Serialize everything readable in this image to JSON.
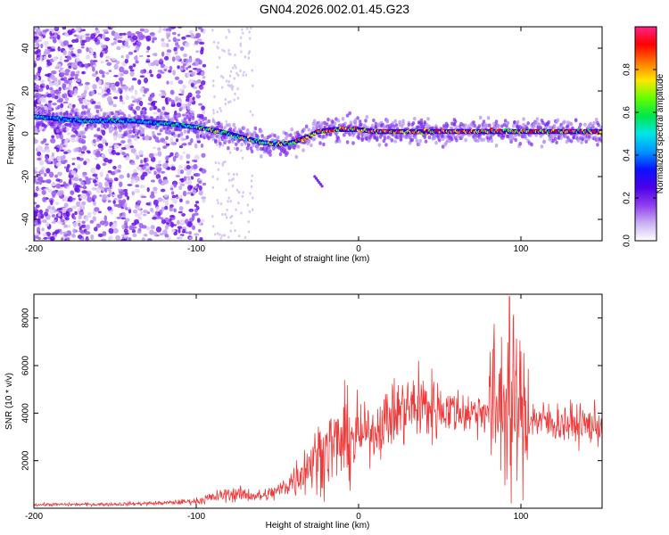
{
  "title": "GN04.2026.002.01.45.G23",
  "chart_data": [
    {
      "type": "heatmap",
      "title": "GN04.2026.002.01.45.G23",
      "xlabel": "Height of straight line (km)",
      "ylabel": "Frequency (Hz)",
      "xlim": [
        -200,
        150
      ],
      "ylim": [
        -50,
        50
      ],
      "xticks": [
        -200,
        -100,
        0,
        100
      ],
      "yticks": [
        -40,
        -20,
        0,
        20,
        40
      ],
      "colorbar": {
        "label": "Normalized spectral amplitude",
        "range": [
          0,
          1
        ],
        "ticks": [
          "0.0",
          "0.2",
          "0.4",
          "0.6",
          "0.8"
        ],
        "colors": [
          "#ffffff",
          "#c9b0f3",
          "#8f3cf0",
          "#4b00e8",
          "#0a12ff",
          "#0096ff",
          "#00e6e6",
          "#00e64b",
          "#64ff00",
          "#ffe600",
          "#ff7800",
          "#ff0000",
          "#ff2288"
        ]
      },
      "ridge": {
        "x": [
          -200,
          -170,
          -140,
          -120,
          -100,
          -85,
          -70,
          -60,
          -50,
          -40,
          -30,
          -25,
          -15,
          0,
          10,
          30,
          60,
          80,
          100,
          120,
          150
        ],
        "freq": [
          8,
          6,
          6,
          5,
          3,
          1,
          -2,
          -4,
          -5,
          -4,
          -1,
          1,
          2,
          2,
          1,
          1,
          1,
          1,
          1,
          1,
          1
        ]
      }
    },
    {
      "type": "line",
      "xlabel": "Height of straight line (km)",
      "ylabel": "SNR (10 * v/v)",
      "xlim": [
        -200,
        150
      ],
      "ylim": [
        0,
        9000
      ],
      "xticks": [
        -200,
        -100,
        0,
        100
      ],
      "yticks": [
        2000,
        4000,
        6000,
        8000
      ],
      "color": "#ee3a3a",
      "trend": {
        "x": [
          -200,
          -150,
          -120,
          -100,
          -90,
          -80,
          -70,
          -60,
          -50,
          -40,
          -30,
          -20,
          -10,
          0,
          10,
          20,
          30,
          40,
          50,
          60,
          70,
          80,
          90,
          95,
          100,
          110,
          120,
          130,
          140,
          150
        ],
        "snr": [
          150,
          170,
          220,
          300,
          450,
          600,
          580,
          500,
          700,
          1200,
          1900,
          2500,
          2800,
          3000,
          3300,
          3900,
          4200,
          4300,
          4200,
          4100,
          4000,
          4200,
          4300,
          4400,
          4000,
          3700,
          3600,
          3550,
          3500,
          3500
        ]
      },
      "peaks": [
        {
          "x": 37,
          "snr": 6200
        },
        {
          "x": 88,
          "snr": 7200
        },
        {
          "x": 93,
          "snr": 8900
        },
        {
          "x": 94,
          "snr": 200
        }
      ]
    }
  ]
}
